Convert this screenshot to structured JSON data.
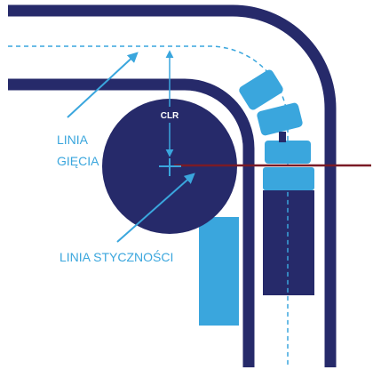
{
  "labels": {
    "bend_line_1": "LINIA",
    "bend_line_2": "GIĘCIA",
    "clr": "CLR",
    "tangent_line": "LINIA STYCZNOŚCI"
  },
  "colors": {
    "tube": "#262a6a",
    "die": "#262a6a",
    "clamp": "#3aa6dd",
    "label": "#3aa6dd",
    "tangent": "#7a1b26",
    "dash": "#3aa6dd"
  }
}
